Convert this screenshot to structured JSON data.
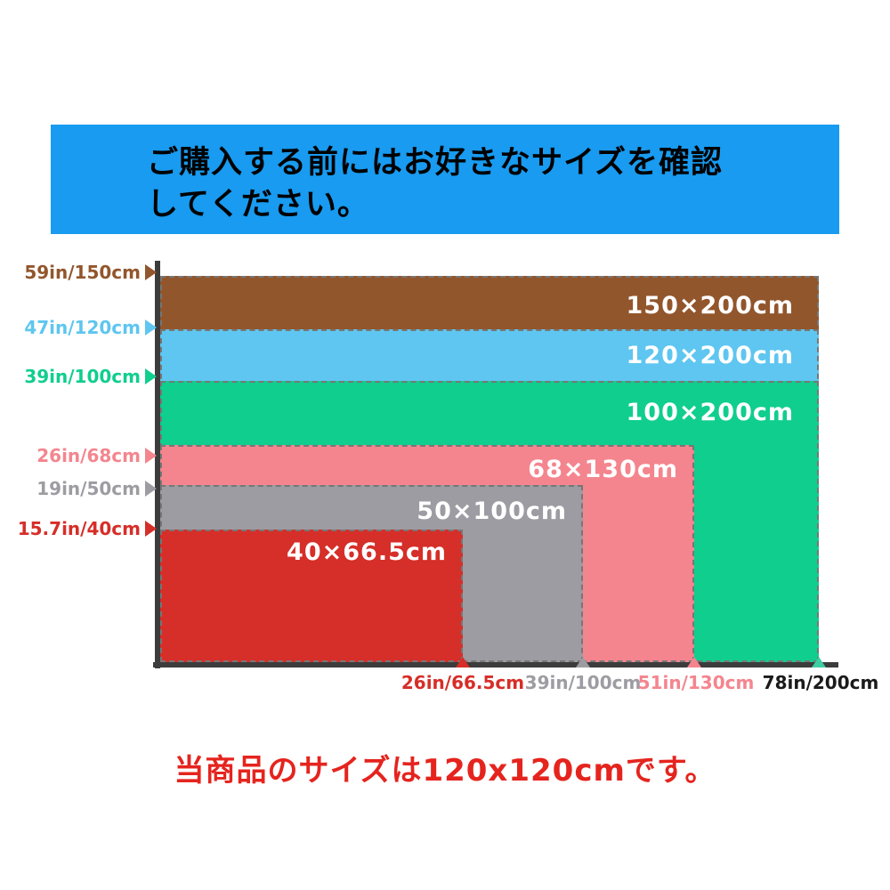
{
  "banner": {
    "line1": "ご購入する前にはお好きなサイズを確認",
    "line2": "してください。",
    "bg_color": "#189BF0"
  },
  "chart": {
    "axis_color": "#3C3C3C",
    "sizes": [
      {
        "label": "150×200cm",
        "y_axis_label": "59in/150cm",
        "width_cm": 200,
        "height_cm": 150,
        "color": "#92562C"
      },
      {
        "label": "120×200cm",
        "y_axis_label": "47in/120cm",
        "width_cm": 200,
        "height_cm": 120,
        "color": "#5EC6F0"
      },
      {
        "label": "100×200cm",
        "y_axis_label": "39in/100cm",
        "width_cm": 200,
        "height_cm": 100,
        "color": "#10CE8E"
      },
      {
        "label": "68×130cm",
        "y_axis_label": "26in/68cm",
        "width_cm": 130,
        "height_cm": 68,
        "color": "#F4858E"
      },
      {
        "label": "50×100cm",
        "y_axis_label": "19in/50cm",
        "width_cm": 100,
        "height_cm": 50,
        "color": "#9C9CA2"
      },
      {
        "label": "40×66.5cm",
        "y_axis_label": "15.7in/40cm",
        "width_cm": 66.5,
        "height_cm": 40,
        "color": "#D62E28"
      }
    ],
    "x_axis_ticks": [
      {
        "label": "26in/66.5cm",
        "text_color": "#D62E28",
        "marker_color": "#D62E28"
      },
      {
        "label": "39in/100cm",
        "text_color": "#9C9CA2",
        "marker_color": "#9C9CA2"
      },
      {
        "label": "51in/130cm",
        "text_color": "#F4858E",
        "marker_color": "#F4858E"
      },
      {
        "label": "78in/200cm",
        "text_color": "#1A1A1A",
        "marker_color": "#3FCDA4"
      }
    ]
  },
  "note": {
    "text": "当商品のサイズは120x120cmです。",
    "color": "#E5241E"
  },
  "chart_data": {
    "type": "bar",
    "subtype": "nested-size-rectangles",
    "title": "ご購入する前にはお好きなサイズを確認してください。",
    "categories": [
      "150×200cm",
      "120×200cm",
      "100×200cm",
      "68×130cm",
      "50×100cm",
      "40×66.5cm"
    ],
    "series": [
      {
        "name": "height_cm",
        "values": [
          150,
          120,
          100,
          68,
          50,
          40
        ]
      },
      {
        "name": "width_cm",
        "values": [
          200,
          200,
          200,
          130,
          100,
          66.5
        ]
      }
    ],
    "y_tick_labels": [
      "59in/150cm",
      "47in/120cm",
      "39in/100cm",
      "26in/68cm",
      "19in/50cm",
      "15.7in/40cm"
    ],
    "x_tick_labels": [
      "26in/66.5cm",
      "39in/100cm",
      "51in/130cm",
      "78in/200cm"
    ],
    "legend": "none",
    "grid": false,
    "annotation": "当商品のサイズは120x120cmです。"
  }
}
